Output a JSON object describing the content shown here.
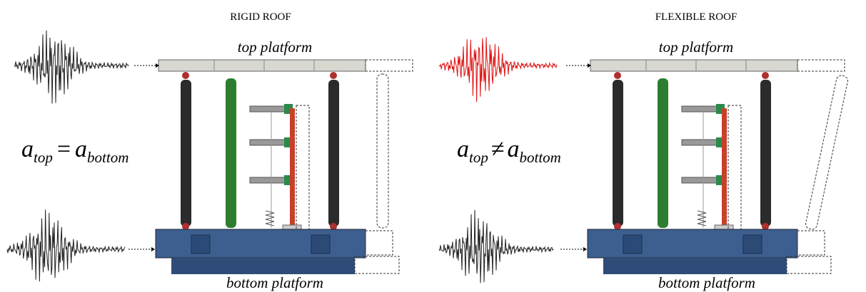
{
  "panels": [
    {
      "title": "RIGID ROOF",
      "top_label": "top platform",
      "bottom_label": "bottom platform",
      "equation": {
        "lhs": "a",
        "lhs_sub": "top",
        "op": "=",
        "rhs": "a",
        "rhs_sub": "bottom"
      }
    },
    {
      "title": "FLEXIBLE ROOF",
      "top_label": "top platform",
      "bottom_label": "bottom platform",
      "equation": {
        "lhs": "a",
        "lhs_sub": "top",
        "op": "≠",
        "rhs": "a",
        "rhs_sub": "bottom"
      }
    }
  ]
}
